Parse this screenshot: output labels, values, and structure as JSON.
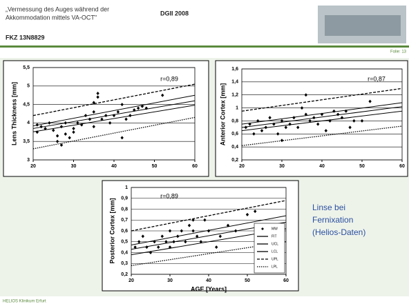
{
  "header": {
    "title_lines": [
      "„Vermessung des Auges während der",
      "Akkommodation mittels VA-OCT\""
    ],
    "event": "DGII 2008",
    "project": "FKZ 13N8829",
    "slide": "Folie: 13"
  },
  "side_text": [
    "Linse bei",
    "Fernixation",
    "(Helios-Daten)"
  ],
  "footer": "HELIOS Klinikum Erfurt",
  "chart_data": [
    {
      "type": "scatter",
      "y_label": "Lens Thickness [mm]",
      "annotation": "r=0,89",
      "grid": true,
      "xlim": [
        20,
        60
      ],
      "xticks": [
        20,
        30,
        40,
        50,
        60
      ],
      "ylim": [
        3,
        5.5
      ],
      "yticks": [
        {
          "value": 3,
          "label": "3"
        },
        {
          "value": 3.5,
          "label": "3,5"
        },
        {
          "value": 4,
          "label": "4"
        },
        {
          "value": 4.5,
          "label": "4,5"
        },
        {
          "value": 5,
          "label": "5"
        },
        {
          "value": 5.5,
          "label": "5,5"
        }
      ],
      "series": [
        {
          "color": "#000000",
          "marker": "diamond",
          "x": [
            21,
            21,
            22,
            23,
            24,
            25,
            26,
            26,
            27,
            27,
            28,
            28,
            29,
            30,
            30,
            31,
            32,
            33,
            34,
            35,
            35,
            36,
            36,
            37,
            38,
            39,
            40,
            41,
            42,
            42,
            43,
            44,
            45,
            46,
            47,
            48,
            52,
            35
          ],
          "values": [
            3.75,
            3.95,
            3.9,
            3.85,
            4.0,
            3.8,
            3.65,
            3.5,
            3.4,
            3.9,
            4.0,
            3.7,
            3.6,
            3.85,
            3.75,
            4.0,
            3.95,
            4.2,
            4.1,
            3.9,
            4.3,
            4.8,
            4.7,
            4.1,
            4.2,
            4.0,
            4.2,
            4.3,
            3.6,
            4.5,
            4.1,
            4.2,
            4.35,
            4.4,
            4.45,
            4.4,
            4.75,
            4.55
          ]
        },
        {
          "color": "#000000",
          "line_style": "solid",
          "x": [
            20,
            60
          ],
          "values": [
            3.85,
            4.6
          ]
        },
        {
          "color": "#000000",
          "line_style": "solid",
          "x": [
            20,
            60
          ],
          "values": [
            3.92,
            4.75
          ]
        },
        {
          "color": "#000000",
          "line_style": "solid",
          "x": [
            20,
            60
          ],
          "values": [
            3.76,
            4.48
          ]
        },
        {
          "color": "#000000",
          "line_style": "dashed",
          "x": [
            20,
            60
          ],
          "values": [
            4.2,
            5.05
          ]
        },
        {
          "color": "#000000",
          "line_style": "dotted",
          "x": [
            20,
            60
          ],
          "values": [
            3.3,
            4.15
          ]
        }
      ]
    },
    {
      "type": "scatter",
      "y_label": "Anterior Cortex [mm]",
      "annotation": "r=0,87",
      "grid": true,
      "xlim": [
        20,
        60
      ],
      "xticks": [
        20,
        30,
        40,
        50,
        60
      ],
      "ylim": [
        0.2,
        1.6
      ],
      "yticks": [
        {
          "value": 0.2,
          "label": "0,2"
        },
        {
          "value": 0.4,
          "label": "0,4"
        },
        {
          "value": 0.6,
          "label": "0,6"
        },
        {
          "value": 0.8,
          "label": "0,8"
        },
        {
          "value": 1,
          "label": "1"
        },
        {
          "value": 1.2,
          "label": "1,2"
        },
        {
          "value": 1.4,
          "label": "1,4"
        },
        {
          "value": 1.6,
          "label": "1,6"
        }
      ],
      "series": [
        {
          "color": "#000000",
          "marker": "diamond",
          "x": [
            21,
            22,
            23,
            24,
            25,
            26,
            27,
            28,
            29,
            30,
            30,
            31,
            32,
            33,
            34,
            35,
            36,
            36,
            37,
            38,
            39,
            40,
            41,
            42,
            43,
            44,
            45,
            46,
            47,
            48,
            50,
            52
          ],
          "values": [
            0.7,
            0.75,
            0.6,
            0.8,
            0.65,
            0.7,
            0.85,
            0.75,
            0.6,
            0.8,
            0.5,
            0.7,
            0.75,
            0.85,
            0.7,
            1.0,
            1.2,
            0.9,
            0.8,
            0.85,
            0.75,
            0.9,
            0.65,
            0.8,
            0.95,
            0.9,
            0.85,
            0.95,
            0.7,
            0.8,
            0.8,
            1.1
          ]
        },
        {
          "color": "#000000",
          "line_style": "solid",
          "x": [
            20,
            60
          ],
          "values": [
            0.7,
            1.02
          ]
        },
        {
          "color": "#000000",
          "line_style": "solid",
          "x": [
            20,
            60
          ],
          "values": [
            0.75,
            1.08
          ]
        },
        {
          "color": "#000000",
          "line_style": "solid",
          "x": [
            20,
            60
          ],
          "values": [
            0.65,
            0.95
          ]
        },
        {
          "color": "#000000",
          "line_style": "dashed",
          "x": [
            20,
            60
          ],
          "values": [
            0.95,
            1.3
          ]
        },
        {
          "color": "#000000",
          "line_style": "dotted",
          "x": [
            20,
            60
          ],
          "values": [
            0.42,
            0.72
          ]
        }
      ]
    },
    {
      "type": "scatter",
      "y_label": "Posterior Cortex [mm]",
      "x_label": "AGE [Years]",
      "annotation": "r=0,89",
      "grid": true,
      "legend": "lower right",
      "xlim": [
        20,
        60
      ],
      "xticks": [
        20,
        30,
        40,
        50,
        60
      ],
      "ylim": [
        0.2,
        1
      ],
      "yticks": [
        {
          "value": 0.2,
          "label": "0,2"
        },
        {
          "value": 0.3,
          "label": "0,3"
        },
        {
          "value": 0.4,
          "label": "0,4"
        },
        {
          "value": 0.5,
          "label": "0,5"
        },
        {
          "value": 0.6,
          "label": "0,6"
        },
        {
          "value": 0.7,
          "label": "0,7"
        },
        {
          "value": 0.8,
          "label": "0,8"
        },
        {
          "value": 0.9,
          "label": "0,9"
        },
        {
          "value": 1,
          "label": "1"
        }
      ],
      "series": [
        {
          "name": "MW",
          "color": "#000000",
          "marker": "diamond",
          "x": [
            21,
            22,
            23,
            24,
            25,
            26,
            27,
            28,
            29,
            30,
            30,
            31,
            32,
            33,
            34,
            35,
            36,
            36,
            37,
            38,
            39,
            40,
            42,
            43,
            45,
            47,
            50,
            52
          ],
          "values": [
            0.45,
            0.5,
            0.55,
            0.45,
            0.4,
            0.5,
            0.45,
            0.55,
            0.5,
            0.6,
            0.45,
            0.5,
            0.55,
            0.6,
            0.5,
            0.65,
            0.6,
            0.7,
            0.55,
            0.5,
            0.7,
            0.6,
            0.45,
            0.55,
            0.65,
            0.6,
            0.75,
            0.78
          ]
        },
        {
          "name": "FIT",
          "color": "#000000",
          "line_style": "solid",
          "x": [
            20,
            60
          ],
          "values": [
            0.43,
            0.68
          ]
        },
        {
          "name": "UCL",
          "color": "#000000",
          "line_style": "solid",
          "x": [
            20,
            60
          ],
          "values": [
            0.47,
            0.74
          ]
        },
        {
          "name": "LCL",
          "color": "#000000",
          "line_style": "solid",
          "x": [
            20,
            60
          ],
          "values": [
            0.38,
            0.62
          ]
        },
        {
          "name": "UPL",
          "color": "#000000",
          "line_style": "dashed",
          "x": [
            20,
            60
          ],
          "values": [
            0.6,
            0.88
          ]
        },
        {
          "name": "LPL",
          "color": "#000000",
          "line_style": "dotted",
          "x": [
            20,
            60
          ],
          "values": [
            0.28,
            0.5
          ]
        }
      ]
    }
  ]
}
